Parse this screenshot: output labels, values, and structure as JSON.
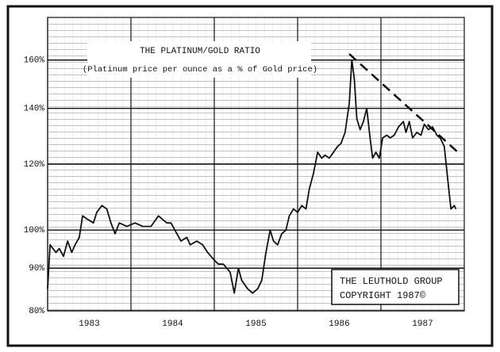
{
  "chart_data": {
    "type": "line",
    "title": "THE PLATINUM/GOLD RATIO",
    "subtitle": "(Platinum price per ounce as a % of Gold price)",
    "annotations": [
      "THE LEUTHOLD GROUP",
      "COPYRIGHT 1987©"
    ],
    "log_scale": true,
    "grid": true,
    "xlim": [
      1983,
      1988
    ],
    "xticks": [
      {
        "value": 1983.5,
        "label": "1983"
      },
      {
        "value": 1984.5,
        "label": "1984"
      },
      {
        "value": 1985.5,
        "label": "1985"
      },
      {
        "value": 1986.5,
        "label": "1986"
      },
      {
        "value": 1987.5,
        "label": "1987"
      }
    ],
    "ylim": [
      80,
      180
    ],
    "yticks": [
      {
        "value": 80,
        "label": "80%"
      },
      {
        "value": 90,
        "label": "90%"
      },
      {
        "value": 100,
        "label": "100%"
      },
      {
        "value": 120,
        "label": "120%"
      },
      {
        "value": 140,
        "label": "140%"
      },
      {
        "value": 160,
        "label": "160%"
      }
    ],
    "x": [
      1983.0,
      1983.03,
      1983.1,
      1983.14,
      1983.19,
      1983.24,
      1983.29,
      1983.33,
      1983.38,
      1983.42,
      1983.48,
      1983.55,
      1983.59,
      1983.65,
      1983.71,
      1983.76,
      1983.81,
      1983.86,
      1983.95,
      1984.05,
      1984.14,
      1984.24,
      1984.33,
      1984.43,
      1984.48,
      1984.6,
      1984.67,
      1984.71,
      1984.79,
      1984.86,
      1984.92,
      1985.0,
      1985.05,
      1985.11,
      1985.19,
      1985.24,
      1985.29,
      1985.33,
      1985.4,
      1985.46,
      1985.52,
      1985.57,
      1985.62,
      1985.67,
      1985.71,
      1985.76,
      1985.81,
      1985.86,
      1985.9,
      1985.95,
      1986.0,
      1986.05,
      1986.1,
      1986.14,
      1986.19,
      1986.24,
      1986.29,
      1986.33,
      1986.38,
      1986.43,
      1986.48,
      1986.52,
      1986.57,
      1986.62,
      1986.65,
      1986.68,
      1986.71,
      1986.75,
      1986.79,
      1986.83,
      1986.87,
      1986.9,
      1986.94,
      1986.98,
      1987.02,
      1987.07,
      1987.11,
      1987.16,
      1987.21,
      1987.27,
      1987.3,
      1987.34,
      1987.38,
      1987.43,
      1987.48,
      1987.52,
      1987.57,
      1987.62,
      1987.67,
      1987.71,
      1987.76,
      1987.81,
      1987.84,
      1987.88,
      1987.9
    ],
    "series": [
      {
        "color": "#111111",
        "values": [
          85,
          96,
          94,
          95,
          93,
          97,
          94,
          96,
          98,
          104,
          103,
          102,
          105,
          107,
          106,
          102,
          99,
          102,
          101,
          102,
          101,
          101,
          104,
          102,
          102,
          97,
          98,
          96,
          97,
          96,
          94,
          92,
          91,
          91,
          89,
          84,
          90,
          87,
          85,
          84,
          85,
          87,
          94,
          100,
          97,
          96,
          99,
          100,
          104,
          106,
          105,
          107,
          106,
          112,
          117,
          124,
          122,
          123,
          122,
          124,
          126,
          127,
          131,
          142,
          160,
          152,
          136,
          132,
          135,
          140,
          129,
          122,
          124,
          122,
          129,
          130,
          129,
          130,
          133,
          135,
          131,
          135,
          129,
          131,
          130,
          134,
          132,
          133,
          130,
          129,
          126,
          113,
          106,
          107,
          106
        ]
      }
    ]
  }
}
